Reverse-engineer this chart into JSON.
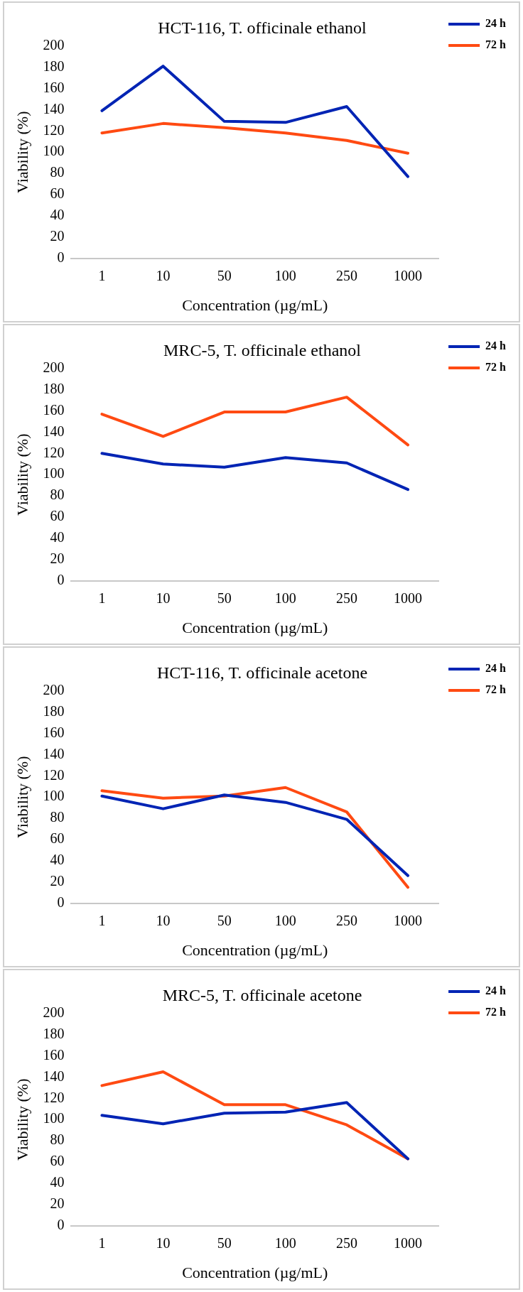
{
  "chart_data": [
    {
      "type": "line",
      "title": "HCT-116, T. officinale ethanol",
      "xlabel": "Concentration (µg/mL)",
      "ylabel": "Viability (%)",
      "categories": [
        "1",
        "10",
        "50",
        "100",
        "250",
        "1000"
      ],
      "ylim": [
        0,
        200
      ],
      "yticks": [
        0,
        20,
        40,
        60,
        80,
        100,
        120,
        140,
        160,
        180,
        200
      ],
      "grid": false,
      "legend": "top right",
      "series": [
        {
          "name": "24 h",
          "color": "#0024b4",
          "values": [
            139,
            181,
            129,
            128,
            143,
            77
          ]
        },
        {
          "name": "72 h",
          "color": "#ff4a12",
          "values": [
            118,
            127,
            123,
            118,
            111,
            99
          ]
        }
      ]
    },
    {
      "type": "line",
      "title": "MRC-5, T. officinale ethanol",
      "xlabel": "Concentration (µg/mL)",
      "ylabel": "Viability (%)",
      "categories": [
        "1",
        "10",
        "50",
        "100",
        "250",
        "1000"
      ],
      "ylim": [
        0,
        200
      ],
      "yticks": [
        0,
        20,
        40,
        60,
        80,
        100,
        120,
        140,
        160,
        180,
        200
      ],
      "grid": false,
      "legend": "top right",
      "series": [
        {
          "name": "24 h",
          "color": "#0024b4",
          "values": [
            120,
            110,
            107,
            116,
            111,
            86
          ]
        },
        {
          "name": "72 h",
          "color": "#ff4a12",
          "values": [
            157,
            136,
            159,
            159,
            173,
            128
          ]
        }
      ]
    },
    {
      "type": "line",
      "title": "HCT-116, T. officinale acetone",
      "xlabel": "Concentration (µg/mL)",
      "ylabel": "Viability (%)",
      "categories": [
        "1",
        "10",
        "50",
        "100",
        "250",
        "1000"
      ],
      "ylim": [
        0,
        200
      ],
      "yticks": [
        0,
        20,
        40,
        60,
        80,
        100,
        120,
        140,
        160,
        180,
        200
      ],
      "grid": false,
      "legend": "top right",
      "series": [
        {
          "name": "24 h",
          "color": "#0024b4",
          "values": [
            101,
            89,
            102,
            95,
            79,
            26
          ]
        },
        {
          "name": "72 h",
          "color": "#ff4a12",
          "values": [
            106,
            99,
            101,
            109,
            86,
            15
          ]
        }
      ]
    },
    {
      "type": "line",
      "title": "MRC-5, T. officinale acetone",
      "xlabel": "Concentration (µg/mL)",
      "ylabel": "Viability (%)",
      "categories": [
        "1",
        "10",
        "50",
        "100",
        "250",
        "1000"
      ],
      "ylim": [
        0,
        200
      ],
      "yticks": [
        0,
        20,
        40,
        60,
        80,
        100,
        120,
        140,
        160,
        180,
        200
      ],
      "grid": false,
      "legend": "top right",
      "series": [
        {
          "name": "24 h",
          "color": "#0024b4",
          "values": [
            104,
            96,
            106,
            107,
            116,
            63
          ]
        },
        {
          "name": "72 h",
          "color": "#ff4a12",
          "values": [
            132,
            145,
            114,
            114,
            95,
            63
          ]
        }
      ]
    }
  ]
}
